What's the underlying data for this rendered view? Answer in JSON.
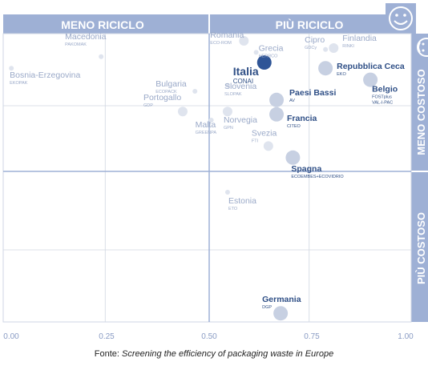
{
  "chart_data": {
    "type": "scatter",
    "title": "",
    "xlabel": "",
    "ylabel": "",
    "xlim": [
      0,
      1
    ],
    "x_ticks": [
      "0.00",
      "0.25",
      "0.50",
      "0.75",
      "1.00"
    ],
    "quadrants": {
      "left_label": "MENO RICICLO",
      "right_label": "PIÙ RICICLO",
      "top_label": "MENO COSTOSO",
      "bottom_label": "PIÙ COSTOSO"
    },
    "grid": true,
    "points": [
      {
        "country": "Bosnia-Erzegovina",
        "org": "EKOPAK",
        "x": 0.02,
        "y": 0.88,
        "tone": "faded",
        "size": "small"
      },
      {
        "country": "Macedonia",
        "org": "PAKOMAK",
        "x": 0.24,
        "y": 0.92,
        "tone": "faded",
        "size": "small"
      },
      {
        "country": "Bulgaria",
        "org": "ECOPACK",
        "x": 0.47,
        "y": 0.8,
        "tone": "faded",
        "size": "small"
      },
      {
        "country": "Portogallo",
        "org": "GDP",
        "x": 0.44,
        "y": 0.73,
        "tone": "faded",
        "size": "medium"
      },
      {
        "country": "Malta",
        "org": "GREENPA",
        "x": 0.51,
        "y": 0.7,
        "tone": "faded",
        "size": "small"
      },
      {
        "country": "Romania",
        "org": "ECO-ROM",
        "x": 0.59,
        "y": 0.975,
        "tone": "faded",
        "size": "medium"
      },
      {
        "country": "Grecia",
        "org": "HERRCO",
        "x": 0.62,
        "y": 0.935,
        "tone": "faded",
        "size": "small"
      },
      {
        "country": "Cipro",
        "org": "GDCy",
        "x": 0.79,
        "y": 0.945,
        "tone": "faded",
        "size": "small"
      },
      {
        "country": "Finlandia",
        "org": "RINKI",
        "x": 0.81,
        "y": 0.95,
        "tone": "faded",
        "size": "medium"
      },
      {
        "country": "Italia",
        "org": "CONAI",
        "x": 0.64,
        "y": 0.9,
        "tone": "highlight",
        "size": "large"
      },
      {
        "country": "Repubblica Ceca",
        "org": "EKO",
        "x": 0.79,
        "y": 0.88,
        "tone": "normal",
        "size": "large"
      },
      {
        "country": "Belgio",
        "org": "FOSTplus VAL-I-PAC",
        "x": 0.9,
        "y": 0.84,
        "tone": "normal",
        "size": "large"
      },
      {
        "country": "Slovenia",
        "org": "SLOPAK",
        "x": 0.55,
        "y": 0.82,
        "tone": "faded",
        "size": "small"
      },
      {
        "country": "Paesi Bassi",
        "org": "AV",
        "x": 0.67,
        "y": 0.77,
        "tone": "normal",
        "size": "large"
      },
      {
        "country": "Norvegia",
        "org": "GPN",
        "x": 0.55,
        "y": 0.73,
        "tone": "faded",
        "size": "medium"
      },
      {
        "country": "Francia",
        "org": "CITEO",
        "x": 0.67,
        "y": 0.72,
        "tone": "normal",
        "size": "large"
      },
      {
        "country": "Svezia",
        "org": "FTI",
        "x": 0.65,
        "y": 0.61,
        "tone": "faded",
        "size": "medium"
      },
      {
        "country": "Spagna",
        "org": "ECOEMBES+ECOVIDRIO",
        "x": 0.71,
        "y": 0.57,
        "tone": "normal",
        "size": "large"
      },
      {
        "country": "Estonia",
        "org": "ETO",
        "x": 0.55,
        "y": 0.45,
        "tone": "faded",
        "size": "small"
      },
      {
        "country": "Germania",
        "org": "DGP",
        "x": 0.68,
        "y": 0.03,
        "tone": "normal",
        "size": "large"
      }
    ]
  },
  "source": {
    "prefix": "Fonte: ",
    "title": "Screening the efficiency of packaging waste in Europe"
  },
  "colors": {
    "band": "#9eb0d5",
    "highlight": "#2f5597",
    "normal_dot": "#c7d0e2",
    "faded_dot": "#dfe4ee",
    "normal_text": "#2f4f86",
    "faded_text": "#9aa9c8",
    "grid": "#d0d6e2"
  },
  "icons": [
    "smiley-icon",
    "smiley-icon"
  ]
}
